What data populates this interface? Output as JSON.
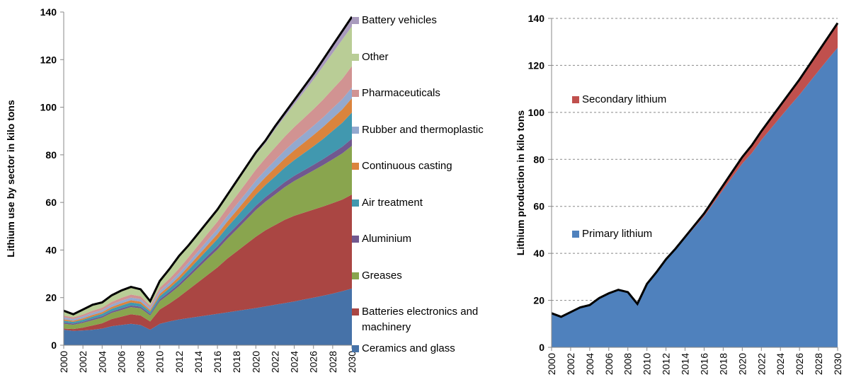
{
  "chart_data": [
    {
      "type": "area",
      "stacked": true,
      "y_label": "Lithium use by sector  in kilo tons",
      "x": [
        2000,
        2001,
        2002,
        2003,
        2004,
        2005,
        2006,
        2007,
        2008,
        2009,
        2010,
        2011,
        2012,
        2013,
        2014,
        2015,
        2016,
        2017,
        2018,
        2019,
        2020,
        2021,
        2022,
        2023,
        2024,
        2025,
        2026,
        2027,
        2028,
        2029,
        2030
      ],
      "xlim": [
        2000,
        2030
      ],
      "xticks": [
        2000,
        2002,
        2004,
        2006,
        2008,
        2010,
        2012,
        2014,
        2016,
        2018,
        2020,
        2022,
        2024,
        2026,
        2028,
        2030
      ],
      "ylim": [
        0,
        140
      ],
      "yticks": [
        0,
        20,
        40,
        60,
        80,
        100,
        120,
        140
      ],
      "grid": false,
      "series": [
        {
          "name": "Ceramics and glass",
          "color": "#4672a8",
          "values": [
            6.5,
            6,
            6.2,
            6.5,
            7,
            8,
            8.5,
            9,
            8.5,
            6.5,
            9,
            10,
            10.8,
            11.4,
            12,
            12.6,
            13.2,
            13.8,
            14.4,
            15,
            15.6,
            16.3,
            17,
            17.7,
            18.4,
            19.2,
            20,
            20.8,
            21.7,
            22.7,
            23.8
          ]
        },
        {
          "name": "Batteries electronics and machinery",
          "color": "#aa4643",
          "values": [
            0.5,
            0.8,
            1.2,
            1.8,
            2.2,
            3,
            3.5,
            4,
            4,
            3.5,
            6,
            7.5,
            9.5,
            12,
            14.5,
            17,
            19.5,
            22.5,
            25,
            27.5,
            30,
            32,
            33.5,
            35,
            36,
            36.5,
            37,
            37.5,
            38,
            38.5,
            39.5
          ]
        },
        {
          "name": "Greases",
          "color": "#89a54e",
          "values": [
            2,
            1.8,
            2,
            2.2,
            2.4,
            2.6,
            2.8,
            3,
            3,
            2.5,
            3.5,
            4,
            4.5,
            5.2,
            6,
            6.8,
            7.5,
            8.3,
            9.2,
            10.2,
            11.2,
            12,
            12.8,
            13.7,
            14.6,
            15.5,
            16.4,
            17.4,
            18.4,
            19.4,
            20.5
          ]
        },
        {
          "name": "Aluminium",
          "color": "#71588f",
          "values": [
            0.5,
            0.5,
            0.5,
            0.6,
            0.6,
            0.6,
            0.7,
            0.7,
            0.7,
            0.6,
            0.8,
            0.9,
            1,
            1.1,
            1.2,
            1.3,
            1.4,
            1.5,
            1.6,
            1.7,
            1.8,
            1.9,
            2,
            2.1,
            2.2,
            2.3,
            2.4,
            2.5,
            2.7,
            2.8,
            3
          ]
        },
        {
          "name": "Air treatment",
          "color": "#4198af",
          "values": [
            0.8,
            0.7,
            0.8,
            0.9,
            1,
            1.1,
            1.2,
            1.3,
            1.2,
            1,
            1.3,
            1.5,
            1.7,
            2,
            2.3,
            2.6,
            3,
            3.4,
            3.8,
            4.2,
            4.6,
            5.1,
            5.6,
            6.1,
            6.6,
            7.2,
            7.8,
            8.5,
            9.3,
            10.1,
            11
          ]
        },
        {
          "name": "Continuous casting",
          "color": "#db843d",
          "values": [
            0.6,
            0.5,
            0.6,
            0.7,
            0.7,
            0.8,
            0.9,
            0.9,
            0.9,
            0.7,
            1,
            1.1,
            1.3,
            1.5,
            1.7,
            1.9,
            2.1,
            2.3,
            2.6,
            2.8,
            3.1,
            3.3,
            3.6,
            3.8,
            4.1,
            4.4,
            4.7,
            5,
            5.3,
            5.6,
            6
          ]
        },
        {
          "name": "Rubber and thermoplastic",
          "color": "#93a9cf",
          "values": [
            0.8,
            0.7,
            0.8,
            0.9,
            0.9,
            1,
            1.1,
            1.1,
            1.1,
            0.9,
            1.2,
            1.3,
            1.5,
            1.6,
            1.8,
            2,
            2.1,
            2.3,
            2.5,
            2.7,
            2.9,
            3,
            3.2,
            3.4,
            3.6,
            3.7,
            3.9,
            4,
            4.2,
            4.3,
            4.5
          ]
        },
        {
          "name": "Pharmaceuticals",
          "color": "#d19392",
          "values": [
            0.8,
            0.7,
            0.8,
            0.9,
            1,
            1.1,
            1.2,
            1.3,
            1.2,
            1,
            1.4,
            1.6,
            1.9,
            2.2,
            2.5,
            2.8,
            3.1,
            3.5,
            3.8,
            4.2,
            4.6,
            5,
            5.4,
            5.8,
            6.2,
            6.6,
            7,
            7.5,
            8,
            8.5,
            9
          ]
        },
        {
          "name": "Other",
          "color": "#b9cd96",
          "values": [
            2,
            1.3,
            2.1,
            2.5,
            2.2,
            2.8,
            3.1,
            3.2,
            2.9,
            1.8,
            2.7,
            4,
            5.1,
            4.8,
            4.7,
            4.6,
            4.6,
            4.8,
            5.4,
            5.9,
            6.3,
            6.3,
            7.6,
            8.4,
            9.5,
            11,
            12.4,
            14,
            15.2,
            16.5,
            16.7
          ]
        },
        {
          "name": "Battery vehicles",
          "color": "#a99bbd",
          "values": [
            0,
            0,
            0,
            0,
            0,
            0,
            0,
            0,
            0,
            0,
            0.1,
            0.1,
            0.2,
            0.2,
            0.3,
            0.4,
            0.5,
            0.6,
            0.7,
            0.8,
            0.9,
            1.1,
            1.3,
            1.5,
            1.8,
            2.1,
            2.4,
            2.8,
            3.2,
            3.6,
            4
          ]
        }
      ]
    },
    {
      "type": "area",
      "stacked": true,
      "y_label": "Lithium production in kilo tons",
      "x": [
        2000,
        2001,
        2002,
        2003,
        2004,
        2005,
        2006,
        2007,
        2008,
        2009,
        2010,
        2011,
        2012,
        2013,
        2014,
        2015,
        2016,
        2017,
        2018,
        2019,
        2020,
        2021,
        2022,
        2023,
        2024,
        2025,
        2026,
        2027,
        2028,
        2029,
        2030
      ],
      "xlim": [
        2000,
        2030
      ],
      "xticks": [
        2000,
        2002,
        2004,
        2006,
        2008,
        2010,
        2012,
        2014,
        2016,
        2018,
        2020,
        2022,
        2024,
        2026,
        2028,
        2030
      ],
      "ylim": [
        0,
        140
      ],
      "yticks": [
        0,
        20,
        40,
        60,
        80,
        100,
        120,
        140
      ],
      "grid": true,
      "series": [
        {
          "name": "Primary lithium",
          "color": "#4f81bd",
          "values": [
            14.3,
            12.8,
            14.8,
            16.8,
            17.8,
            20.8,
            22.8,
            24.3,
            23.3,
            18.3,
            26.8,
            31.7,
            37.1,
            41.5,
            46.3,
            51.1,
            55.8,
            61.5,
            67.1,
            72.7,
            78.2,
            82.7,
            88.2,
            93.1,
            98,
            102.8,
            107.5,
            112.6,
            117.7,
            122.7,
            127.5
          ]
        },
        {
          "name": "Secondary lithium",
          "color": "#c0504d",
          "values": [
            0.2,
            0.2,
            0.2,
            0.2,
            0.2,
            0.2,
            0.2,
            0.2,
            0.2,
            0.2,
            0.2,
            0.3,
            0.4,
            0.5,
            0.7,
            0.9,
            1.2,
            1.5,
            1.9,
            2.3,
            2.8,
            3.3,
            3.8,
            4.4,
            5,
            5.7,
            6.5,
            7.4,
            8.3,
            9.3,
            10.5
          ]
        }
      ]
    }
  ]
}
